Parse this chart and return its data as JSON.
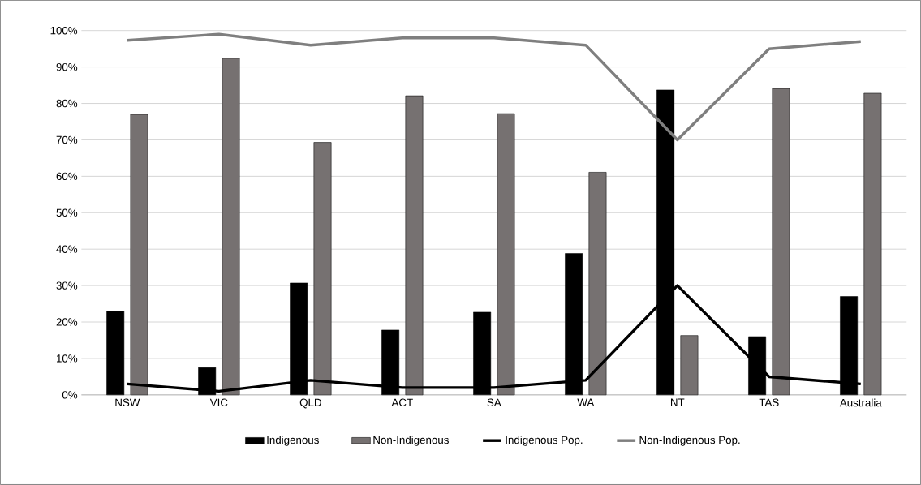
{
  "chart_data": {
    "type": "bar",
    "categories": [
      "NSW",
      "VIC",
      "QLD",
      "ACT",
      "SA",
      "WA",
      "NT",
      "TAS",
      "Australia"
    ],
    "series": [
      {
        "name": "Indigenous",
        "color": "#000000",
        "values": [
          23,
          7.5,
          30.7,
          17.8,
          22.7,
          38.8,
          83.7,
          16,
          27
        ]
      },
      {
        "name": "Non-Indigenous",
        "color": "#767171",
        "values": [
          77,
          92.4,
          69.3,
          82.1,
          77.2,
          61.1,
          16.3,
          84.1,
          82.8
        ]
      },
      {
        "name": "Indigenous Pop.",
        "type": "line",
        "color": "#000000",
        "values": [
          3,
          1,
          4,
          2,
          2,
          4,
          30,
          5,
          3
        ]
      },
      {
        "name": "Non-Indigenous Pop.",
        "type": "line",
        "color": "#7f7f7f",
        "values": [
          97.3,
          99,
          96,
          98,
          98,
          96,
          70,
          95,
          97
        ]
      }
    ],
    "ylim": [
      0,
      100
    ],
    "yticks": [
      {
        "value": 0,
        "label": "0%"
      },
      {
        "value": 10,
        "label": "10%"
      },
      {
        "value": 20,
        "label": "20%"
      },
      {
        "value": 30,
        "label": "30%"
      },
      {
        "value": 40,
        "label": "40%"
      },
      {
        "value": 50,
        "label": "50%"
      },
      {
        "value": 60,
        "label": "60%"
      },
      {
        "value": 70,
        "label": "70%"
      },
      {
        "value": 80,
        "label": "80%"
      },
      {
        "value": 90,
        "label": "90%"
      },
      {
        "value": 100,
        "label": "100%"
      }
    ],
    "grid": "y",
    "legend": "bottom",
    "line_style": "solid",
    "marker": "none"
  }
}
